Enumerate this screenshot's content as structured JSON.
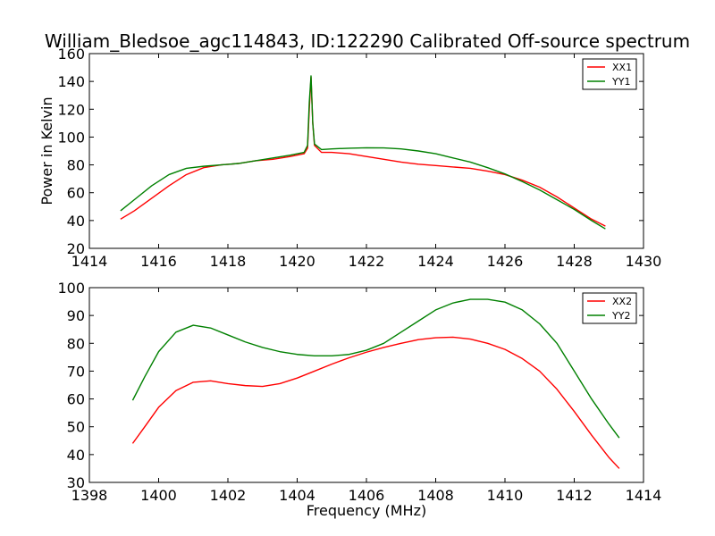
{
  "chart_data": [
    {
      "type": "line",
      "title": "William_Bledsoe_agc114843, ID:122290 Calibrated Off-source spectrum",
      "xlabel": "",
      "ylabel": "Power in Kelvin",
      "xlim": [
        1414,
        1430
      ],
      "ylim": [
        20,
        160
      ],
      "x_ticks": [
        1414,
        1416,
        1418,
        1420,
        1422,
        1424,
        1426,
        1428,
        1430
      ],
      "y_ticks": [
        20,
        40,
        60,
        80,
        100,
        120,
        140,
        160
      ],
      "legend": "top-right",
      "series": [
        {
          "name": "XX1",
          "color": "#ff0000",
          "x": [
            1414.9,
            1415.3,
            1415.8,
            1416.3,
            1416.8,
            1417.3,
            1417.8,
            1418.3,
            1418.8,
            1419.3,
            1419.8,
            1420.2,
            1420.3,
            1420.35,
            1420.4,
            1420.45,
            1420.5,
            1420.7,
            1421.0,
            1421.5,
            1422.0,
            1422.5,
            1423.0,
            1423.5,
            1424.0,
            1424.5,
            1425.0,
            1425.5,
            1426.0,
            1426.5,
            1427.0,
            1427.5,
            1428.0,
            1428.5,
            1428.9
          ],
          "y": [
            41,
            47,
            56,
            65,
            73,
            78,
            80,
            81,
            83,
            84,
            86,
            88,
            92,
            120,
            143,
            110,
            94,
            89,
            89,
            88,
            86,
            84,
            82,
            80.5,
            79.5,
            78.5,
            77.5,
            75.5,
            73,
            69,
            64,
            57,
            49,
            41,
            36
          ]
        },
        {
          "name": "YY1",
          "color": "#008000",
          "x": [
            1414.9,
            1415.3,
            1415.8,
            1416.3,
            1416.8,
            1417.3,
            1417.8,
            1418.3,
            1418.8,
            1419.3,
            1419.8,
            1420.2,
            1420.3,
            1420.35,
            1420.4,
            1420.45,
            1420.5,
            1420.7,
            1421.0,
            1421.5,
            1422.0,
            1422.5,
            1423.0,
            1423.5,
            1424.0,
            1424.5,
            1425.0,
            1425.5,
            1426.0,
            1426.5,
            1427.0,
            1427.5,
            1428.0,
            1428.5,
            1428.9
          ],
          "y": [
            47,
            55,
            65,
            73,
            77.5,
            79,
            80,
            81,
            83,
            85,
            87,
            89,
            94,
            125,
            144,
            110,
            95,
            91,
            91.5,
            92,
            92.3,
            92.2,
            91.5,
            90,
            88,
            85,
            82,
            78,
            73.5,
            68,
            62,
            55,
            48,
            40,
            34
          ]
        }
      ]
    },
    {
      "type": "line",
      "title": "",
      "xlabel": "Frequency (MHz)",
      "ylabel": "",
      "xlim": [
        1398,
        1414
      ],
      "ylim": [
        30,
        100
      ],
      "x_ticks": [
        1398,
        1400,
        1402,
        1404,
        1406,
        1408,
        1410,
        1412,
        1414
      ],
      "y_ticks": [
        30,
        40,
        50,
        60,
        70,
        80,
        90,
        100
      ],
      "legend": "top-right",
      "series": [
        {
          "name": "XX2",
          "color": "#ff0000",
          "x": [
            1399.25,
            1399.6,
            1400.0,
            1400.5,
            1401.0,
            1401.5,
            1402.0,
            1402.5,
            1403.0,
            1403.5,
            1404.0,
            1404.5,
            1405.0,
            1405.5,
            1406.0,
            1406.5,
            1407.0,
            1407.5,
            1408.0,
            1408.5,
            1409.0,
            1409.5,
            1410.0,
            1410.5,
            1411.0,
            1411.5,
            1412.0,
            1412.5,
            1413.0,
            1413.3
          ],
          "y": [
            44,
            50,
            57,
            63,
            66,
            66.5,
            65.5,
            64.8,
            64.5,
            65.5,
            67.5,
            70,
            72.5,
            74.8,
            76.8,
            78.5,
            80,
            81.3,
            82,
            82.2,
            81.5,
            80,
            77.8,
            74.5,
            70,
            63.5,
            55.5,
            47,
            39,
            35
          ]
        },
        {
          "name": "YY2",
          "color": "#008000",
          "x": [
            1399.25,
            1399.6,
            1400.0,
            1400.5,
            1401.0,
            1401.5,
            1402.0,
            1402.5,
            1403.0,
            1403.5,
            1404.0,
            1404.5,
            1405.0,
            1405.5,
            1406.0,
            1406.5,
            1407.0,
            1407.5,
            1408.0,
            1408.5,
            1409.0,
            1409.5,
            1410.0,
            1410.5,
            1411.0,
            1411.5,
            1412.0,
            1412.5,
            1413.0,
            1413.3
          ],
          "y": [
            59.5,
            68,
            77,
            84,
            86.5,
            85.5,
            83,
            80.5,
            78.5,
            77,
            76,
            75.5,
            75.5,
            76,
            77.5,
            80,
            84,
            88,
            92,
            94.5,
            95.8,
            95.8,
            94.8,
            92,
            87,
            80,
            70,
            60,
            51,
            46
          ]
        }
      ]
    }
  ]
}
